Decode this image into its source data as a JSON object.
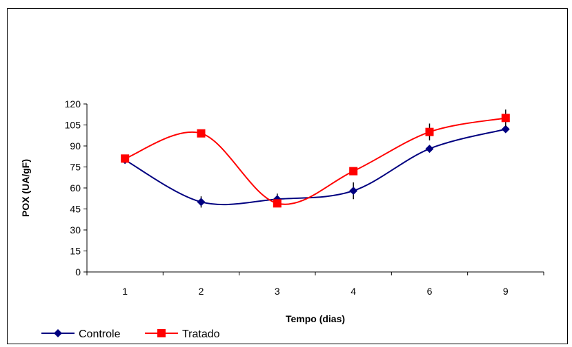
{
  "chart_data": {
    "type": "line",
    "title": "",
    "xlabel": "Tempo (dias)",
    "ylabel": "POX (UA/gF)",
    "categories": [
      "1",
      "2",
      "3",
      "4",
      "6",
      "9"
    ],
    "ylim": [
      0,
      120
    ],
    "yticks": [
      0,
      15,
      30,
      45,
      60,
      75,
      90,
      105,
      120
    ],
    "grid": false,
    "legend": "bottom-left",
    "series": [
      {
        "name": "Controle",
        "values": [
          80,
          50,
          52,
          58,
          88,
          102
        ],
        "errors": [
          0,
          4,
          4,
          6,
          0,
          0
        ],
        "color": "#000080",
        "marker": "diamond"
      },
      {
        "name": "Tratado",
        "values": [
          81,
          99,
          49,
          72,
          100,
          110
        ],
        "errors": [
          0,
          0,
          0,
          0,
          6,
          6
        ],
        "color": "#FF0000",
        "marker": "square"
      }
    ]
  }
}
